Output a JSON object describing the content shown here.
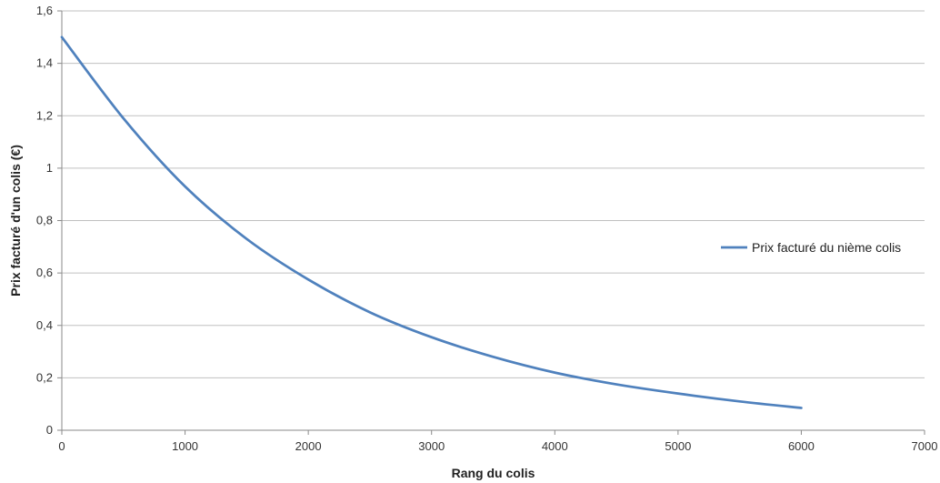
{
  "chart_data": {
    "type": "line",
    "title": "",
    "xlabel": "Rang du colis",
    "ylabel": "Prix facturé d'un colis (€)",
    "xlim": [
      0,
      7000
    ],
    "ylim": [
      0,
      1.6
    ],
    "x_ticks": [
      "0",
      "1000",
      "2000",
      "3000",
      "4000",
      "5000",
      "6000",
      "7000"
    ],
    "y_ticks": [
      "0",
      "0,2",
      "0,4",
      "0,6",
      "0,8",
      "1",
      "1,2",
      "1,4",
      "1,6"
    ],
    "grid": "horizontal",
    "legend_position": "right",
    "series": [
      {
        "name": "Prix facturé du nième colis",
        "color": "#4f81bd",
        "x": [
          0,
          500,
          1000,
          1500,
          2000,
          2500,
          3000,
          3500,
          4000,
          4500,
          5000,
          5500,
          6000
        ],
        "y": [
          1.5,
          1.19,
          0.93,
          0.73,
          0.575,
          0.45,
          0.355,
          0.28,
          0.22,
          0.175,
          0.14,
          0.11,
          0.085
        ]
      }
    ]
  }
}
